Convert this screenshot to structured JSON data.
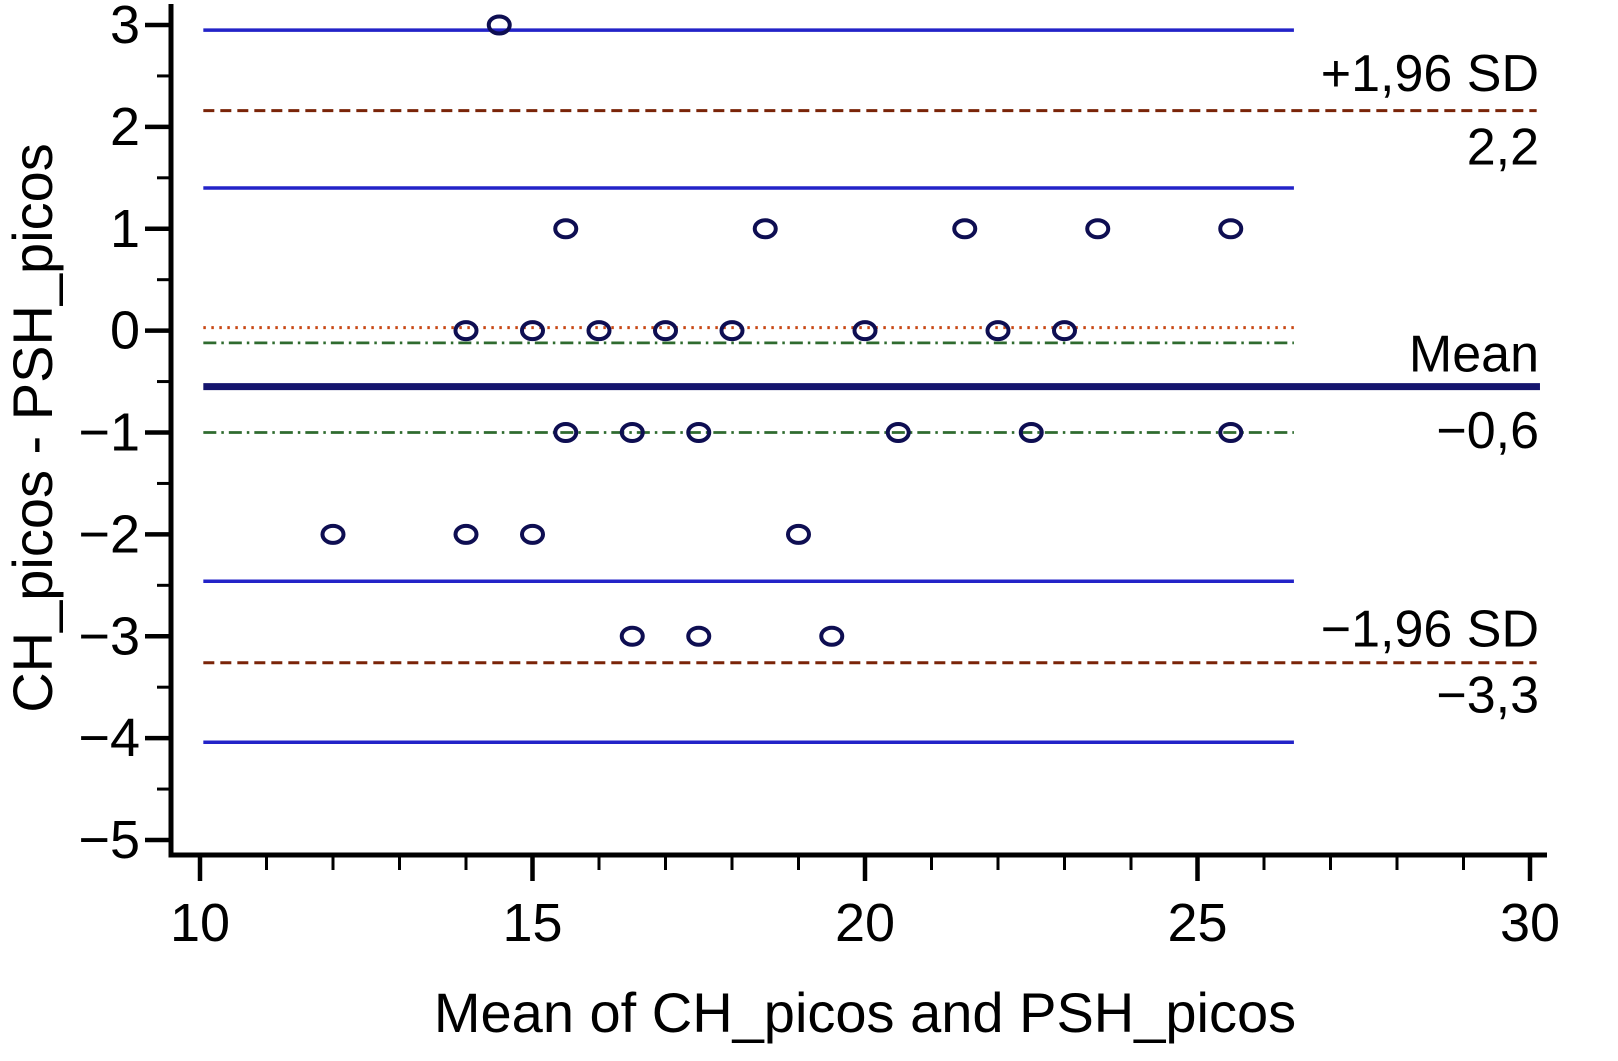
{
  "chart_data": {
    "type": "scatter",
    "xlabel": "Mean of CH_picos and PSH_picos",
    "ylabel": "CH_picos - PSH_picos",
    "xlim": [
      10,
      30
    ],
    "ylim": [
      -5,
      3
    ],
    "x_major_ticks": [
      10,
      15,
      20,
      25,
      30
    ],
    "x_minor_step": 1,
    "y_major_ticks": [
      3,
      2,
      1,
      0,
      -1,
      -2,
      -3,
      -4,
      -5
    ],
    "y_minor_step": 0.5,
    "grid": false,
    "legend": false,
    "point_color": "#0e0e52",
    "points": [
      {
        "x": 14.5,
        "y": 3
      },
      {
        "x": 15.5,
        "y": 1
      },
      {
        "x": 18.5,
        "y": 1
      },
      {
        "x": 21.5,
        "y": 1
      },
      {
        "x": 23.5,
        "y": 1
      },
      {
        "x": 25.5,
        "y": 1
      },
      {
        "x": 14,
        "y": 0
      },
      {
        "x": 15,
        "y": 0
      },
      {
        "x": 16,
        "y": 0
      },
      {
        "x": 17,
        "y": 0
      },
      {
        "x": 18,
        "y": 0
      },
      {
        "x": 20,
        "y": 0
      },
      {
        "x": 22,
        "y": 0
      },
      {
        "x": 23,
        "y": 0
      },
      {
        "x": 15.5,
        "y": -1
      },
      {
        "x": 16.5,
        "y": -1
      },
      {
        "x": 17.5,
        "y": -1
      },
      {
        "x": 20.5,
        "y": -1
      },
      {
        "x": 22.5,
        "y": -1
      },
      {
        "x": 25.5,
        "y": -1
      },
      {
        "x": 12,
        "y": -2
      },
      {
        "x": 14,
        "y": -2
      },
      {
        "x": 15,
        "y": -2
      },
      {
        "x": 19,
        "y": -2
      },
      {
        "x": 16.5,
        "y": -3
      },
      {
        "x": 17.5,
        "y": -3
      },
      {
        "x": 19.5,
        "y": -3
      }
    ],
    "lines": [
      {
        "name": "upper-loa-ci-upper",
        "y": 2.95,
        "color": "#2323c8",
        "style": "solid",
        "width": 3.5,
        "x_start": 10.05,
        "x_end": 26.45
      },
      {
        "name": "upper-loa",
        "y": 2.16,
        "color": "#7a2408",
        "style": "dashed",
        "width": 3,
        "x_start": 10.05,
        "x_end": 30.1
      },
      {
        "name": "upper-loa-ci-lower",
        "y": 1.4,
        "color": "#2323c8",
        "style": "solid",
        "width": 3.5,
        "x_start": 10.05,
        "x_end": 26.45
      },
      {
        "name": "zero-line",
        "y": 0.03,
        "color": "#c84814",
        "style": "dotted",
        "width": 3,
        "x_start": 10.05,
        "x_end": 26.45
      },
      {
        "name": "mean-ci-upper",
        "y": -0.12,
        "color": "#2f6b2f",
        "style": "dashdot",
        "width": 2.8,
        "x_start": 10.05,
        "x_end": 26.45
      },
      {
        "name": "mean",
        "y": -0.55,
        "color": "#15156e",
        "style": "solid",
        "width": 7,
        "x_start": 10.05,
        "x_end": 30.15
      },
      {
        "name": "mean-ci-lower",
        "y": -1.0,
        "color": "#2f6b2f",
        "style": "dashdot",
        "width": 2.8,
        "x_start": 10.05,
        "x_end": 26.45
      },
      {
        "name": "lower-loa-ci-upper",
        "y": -2.46,
        "color": "#2323c8",
        "style": "solid",
        "width": 3.5,
        "x_start": 10.05,
        "x_end": 26.45
      },
      {
        "name": "lower-loa",
        "y": -3.26,
        "color": "#7a2408",
        "style": "dashed",
        "width": 3,
        "x_start": 10.05,
        "x_end": 30.1
      },
      {
        "name": "lower-loa-ci-lower",
        "y": -4.04,
        "color": "#2323c8",
        "style": "solid",
        "width": 3.5,
        "x_start": 10.05,
        "x_end": 26.45
      }
    ],
    "annotations": [
      {
        "name": "upper-loa-label",
        "text": "+1,96 SD",
        "y": 2.35
      },
      {
        "name": "upper-loa-value",
        "text": "2,2",
        "y": 1.63
      },
      {
        "name": "mean-label",
        "text": "Mean",
        "y": -0.4
      },
      {
        "name": "mean-value",
        "text": "−0,6",
        "y": -1.15
      },
      {
        "name": "lower-loa-label",
        "text": "−1,96 SD",
        "y": -3.1
      },
      {
        "name": "lower-loa-value",
        "text": "−3,3",
        "y": -3.75
      }
    ],
    "stats": {
      "mean": "−0,6",
      "upper_loa": "2,2",
      "lower_loa": "−3,3"
    }
  }
}
